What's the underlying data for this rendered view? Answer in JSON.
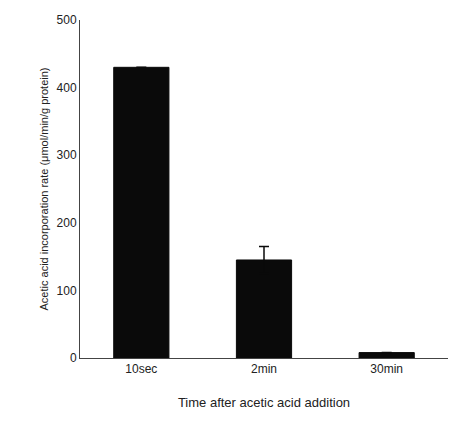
{
  "chart_data": {
    "type": "bar",
    "categories": [
      "10sec",
      "2min",
      "30min"
    ],
    "values": [
      430,
      145,
      8
    ],
    "errors": [
      0,
      20,
      0
    ],
    "color": "#0a0a0a",
    "xlabel": "Time after acetic acid addition",
    "ylabel": "Acetic acid incorporation rate (μmol/min/g protein)",
    "ylim": [
      0,
      500
    ],
    "yticks": [
      0,
      100,
      200,
      300,
      400,
      500
    ],
    "grid": false
  }
}
